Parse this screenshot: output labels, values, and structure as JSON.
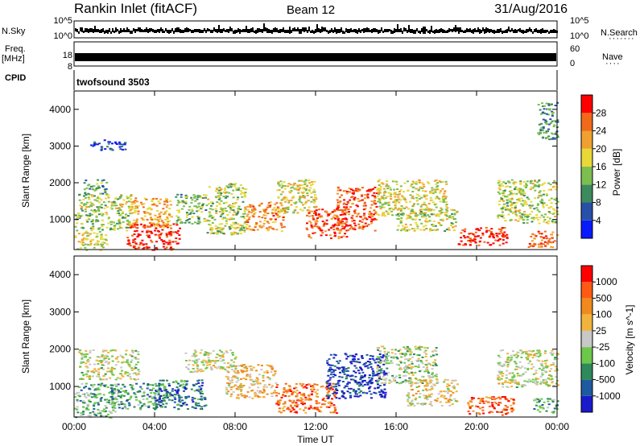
{
  "header": {
    "station": "Rankin Inlet (fitACF)",
    "beam": "Beam 12",
    "date": "31/Aug/2016"
  },
  "noise_panel": {
    "left_label": "N.Sky",
    "right_label": "N.Search",
    "left_ticks": [
      "10^5",
      "10^0"
    ],
    "right_ticks": [
      "10^5",
      "10^0"
    ]
  },
  "freq_panel": {
    "label_line1": "Freq.",
    "label_line2": "[MHz]",
    "left_ticks": [
      "18",
      "8"
    ],
    "right_ticks": [
      "60",
      "0"
    ],
    "right_label": "Nave"
  },
  "cpid_panel": {
    "label": "CPID",
    "text": "twofsound 3503"
  },
  "time_axis": {
    "ticks": [
      "00:00",
      "04:00",
      "08:00",
      "12:00",
      "16:00",
      "20:00",
      "00:00"
    ],
    "label": "Time UT"
  },
  "chart_data": [
    {
      "type": "heatmap",
      "ylabel": "Slant Range [km]",
      "yticks": [
        1000,
        2000,
        3000,
        4000
      ],
      "ylim": [
        180,
        4500
      ],
      "xlim_hours": [
        0,
        24
      ],
      "colorbar": {
        "label": "Power [dB]",
        "ticks": [
          "4",
          "8",
          "12",
          "16",
          "20",
          "24",
          "28"
        ],
        "colors": [
          "#0a1aff",
          "#2850a8",
          "#3d8a5c",
          "#7cbe50",
          "#e8d838",
          "#f0a030",
          "#f06a1a",
          "#ff0000"
        ]
      },
      "scatter_regions": [
        {
          "t": [
            0.0,
            1.6
          ],
          "r": [
            180,
            700
          ],
          "v": 0.55
        },
        {
          "t": [
            0.0,
            2.8
          ],
          "r": [
            700,
            1200
          ],
          "v": 0.45
        },
        {
          "t": [
            0.2,
            3.0
          ],
          "r": [
            1200,
            1700
          ],
          "v": 0.5
        },
        {
          "t": [
            0.4,
            1.6
          ],
          "r": [
            1700,
            2100
          ],
          "v": 0.35
        },
        {
          "t": [
            0.8,
            2.6
          ],
          "r": [
            2900,
            3200
          ],
          "v": 0.15
        },
        {
          "t": [
            2.6,
            5.2
          ],
          "r": [
            180,
            900
          ],
          "v": 0.95
        },
        {
          "t": [
            2.8,
            4.8
          ],
          "r": [
            800,
            1600
          ],
          "v": 0.7
        },
        {
          "t": [
            5.0,
            6.5
          ],
          "r": [
            900,
            1700
          ],
          "v": 0.4
        },
        {
          "t": [
            6.5,
            8.5
          ],
          "r": [
            600,
            2000
          ],
          "v": 0.5
        },
        {
          "t": [
            8.5,
            10.5
          ],
          "r": [
            700,
            1500
          ],
          "v": 0.72
        },
        {
          "t": [
            10.0,
            12.0
          ],
          "r": [
            1200,
            2100
          ],
          "v": 0.55
        },
        {
          "t": [
            11.5,
            13.5
          ],
          "r": [
            500,
            1300
          ],
          "v": 0.85
        },
        {
          "t": [
            13.0,
            15.0
          ],
          "r": [
            700,
            1900
          ],
          "v": 0.85
        },
        {
          "t": [
            15.0,
            18.5
          ],
          "r": [
            1100,
            2100
          ],
          "v": 0.55
        },
        {
          "t": [
            16.0,
            19.0
          ],
          "r": [
            700,
            1300
          ],
          "v": 0.5
        },
        {
          "t": [
            19.0,
            21.5
          ],
          "r": [
            300,
            800
          ],
          "v": 0.95
        },
        {
          "t": [
            21.0,
            24.0
          ],
          "r": [
            900,
            2100
          ],
          "v": 0.5
        },
        {
          "t": [
            22.5,
            24.0
          ],
          "r": [
            250,
            700
          ],
          "v": 0.8
        },
        {
          "t": [
            23.0,
            24.0
          ],
          "r": [
            3200,
            4200
          ],
          "v": 0.3
        }
      ]
    },
    {
      "type": "heatmap",
      "ylabel": "Slant Range [km]",
      "yticks": [
        1000,
        2000,
        3000,
        4000
      ],
      "ylim": [
        180,
        4500
      ],
      "xlim_hours": [
        0,
        24
      ],
      "colorbar": {
        "label": "Velocity [m s^-1]",
        "ticks": [
          "1000",
          "500",
          "100",
          "25",
          "-25",
          "-100",
          "-500",
          "-1000"
        ],
        "colors": [
          "#1a1acc",
          "#1e5aa0",
          "#2e8a5a",
          "#6cc84a",
          "#c8c8c8",
          "#f0b43c",
          "#f08a1e",
          "#ff5a14",
          "#ff0000"
        ]
      },
      "scatter_regions": [
        {
          "t": [
            0.0,
            2.0
          ],
          "r": [
            180,
            1100
          ],
          "v": 0.35
        },
        {
          "t": [
            0.2,
            3.2
          ],
          "r": [
            1200,
            2000
          ],
          "v": 0.5
        },
        {
          "t": [
            1.8,
            4.5
          ],
          "r": [
            400,
            1100
          ],
          "v": 0.3
        },
        {
          "t": [
            4.0,
            6.5
          ],
          "r": [
            400,
            1200
          ],
          "v": 0.2
        },
        {
          "t": [
            5.5,
            8.0
          ],
          "r": [
            1400,
            2000
          ],
          "v": 0.5
        },
        {
          "t": [
            7.5,
            10.0
          ],
          "r": [
            700,
            1600
          ],
          "v": 0.6
        },
        {
          "t": [
            10.0,
            13.0
          ],
          "r": [
            300,
            1100
          ],
          "v": 0.8
        },
        {
          "t": [
            12.5,
            15.5
          ],
          "r": [
            700,
            1900
          ],
          "v": 0.1
        },
        {
          "t": [
            15.0,
            18.0
          ],
          "r": [
            1100,
            2100
          ],
          "v": 0.45
        },
        {
          "t": [
            16.5,
            19.0
          ],
          "r": [
            500,
            1200
          ],
          "v": 0.55
        },
        {
          "t": [
            19.5,
            21.8
          ],
          "r": [
            250,
            750
          ],
          "v": 0.8
        },
        {
          "t": [
            21.0,
            24.0
          ],
          "r": [
            1000,
            2000
          ],
          "v": 0.5
        },
        {
          "t": [
            22.8,
            24.0
          ],
          "r": [
            300,
            700
          ],
          "v": 0.3
        }
      ]
    }
  ]
}
